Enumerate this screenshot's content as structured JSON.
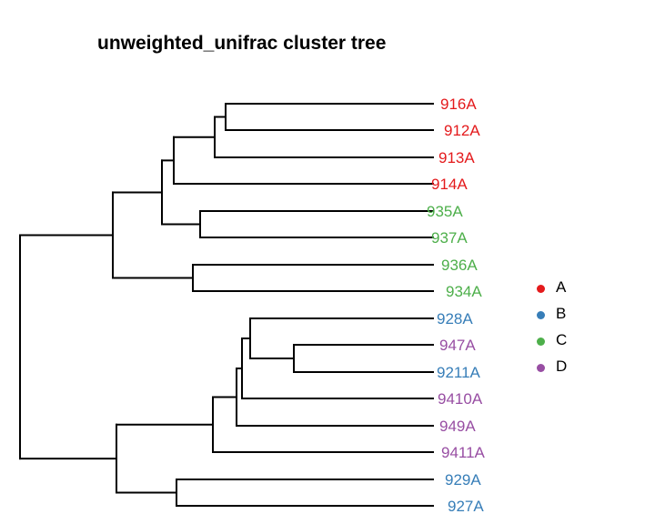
{
  "title": "unweighted_unifrac cluster tree",
  "colors": {
    "A": "#e41a1c",
    "B": "#377eb8",
    "C": "#4daf4a",
    "D": "#984ea3"
  },
  "tips": [
    {
      "label": "916A",
      "group": "A"
    },
    {
      "label": "912A",
      "group": "A"
    },
    {
      "label": "913A",
      "group": "A"
    },
    {
      "label": "914A",
      "group": "A"
    },
    {
      "label": "935A",
      "group": "C"
    },
    {
      "label": "937A",
      "group": "C"
    },
    {
      "label": "936A",
      "group": "C"
    },
    {
      "label": "934A",
      "group": "C"
    },
    {
      "label": "928A",
      "group": "B"
    },
    {
      "label": "947A",
      "group": "D"
    },
    {
      "label": "9211A",
      "group": "B"
    },
    {
      "label": "9410A",
      "group": "D"
    },
    {
      "label": "949A",
      "group": "D"
    },
    {
      "label": "9411A",
      "group": "D"
    },
    {
      "label": "929A",
      "group": "B"
    },
    {
      "label": "927A",
      "group": "B"
    }
  ],
  "legend": [
    {
      "label": "A",
      "color": "#e41a1c"
    },
    {
      "label": "B",
      "color": "#377eb8"
    },
    {
      "label": "C",
      "color": "#4daf4a"
    },
    {
      "label": "D",
      "color": "#984ea3"
    }
  ]
}
